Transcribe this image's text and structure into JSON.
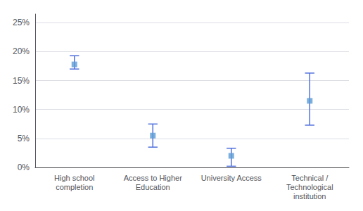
{
  "chart_data": {
    "type": "errorbar",
    "categories": [
      "High school\ncompletion",
      "Access to Higher\nEducation",
      "University Access",
      "Technical /\nTechnological\ninstitution"
    ],
    "values": [
      0.178,
      0.055,
      0.02,
      0.115
    ],
    "upper": [
      0.193,
      0.075,
      0.033,
      0.163
    ],
    "lower": [
      0.17,
      0.035,
      0.002,
      0.073
    ],
    "color": "#5B9BD5",
    "marker": "square",
    "ylim": [
      0,
      0.265
    ],
    "yticks": [
      {
        "value": 0.0,
        "label": "0%"
      },
      {
        "value": 0.05,
        "label": "5%"
      },
      {
        "value": 0.1,
        "label": "10%"
      },
      {
        "value": 0.15,
        "label": "15%"
      },
      {
        "value": 0.2,
        "label": "20%"
      },
      {
        "value": 0.25,
        "label": "25%"
      }
    ],
    "grid": true
  }
}
